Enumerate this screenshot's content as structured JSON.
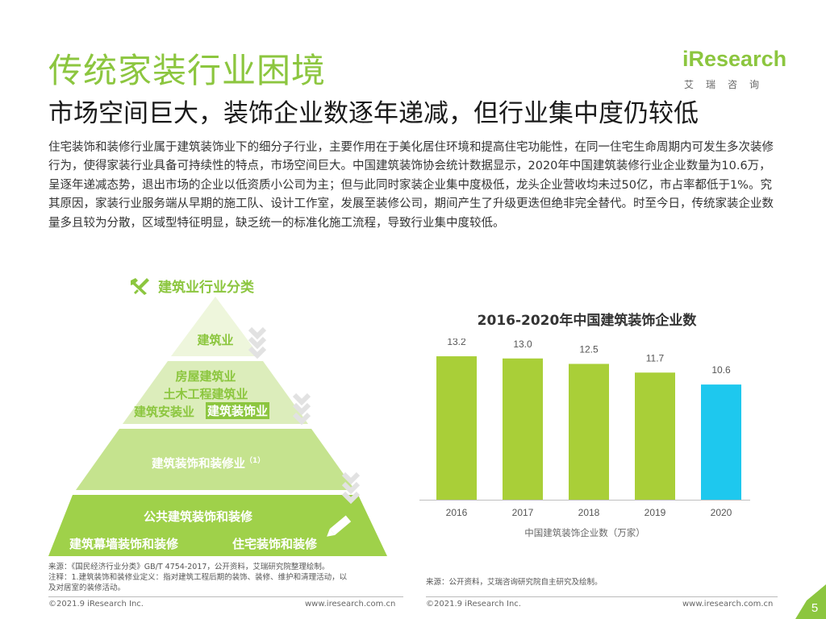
{
  "header": {
    "title": "传统家装行业困境",
    "subtitle": "市场空间巨大，装饰企业数逐年递减，但行业集中度仍较低"
  },
  "logo": {
    "name": "iResearch",
    "subtitle": "艾瑞咨询"
  },
  "paragraph": "住宅装饰和装修行业属于建筑装饰业下的细分子行业，主要作用在于美化居住环境和提高住宅功能性，在同一住宅生命周期内可发生多次装修行为，使得家装行业具备可持续性的特点，市场空间巨大。中国建筑装饰协会统计数据显示，2020年中国建筑装修行业企业数量为10.6万，呈逐年递减态势，退出市场的企业以低资质小公司为主；但与此同时家装企业集中度极低，龙头企业营收均未过50亿，市占率都低于1%。究其原因，家装行业服务端从早期的施工队、设计工作室，发展至装修公司，期间产生了升级更迭但绝非完全替代。时至今日，传统家装企业数量多且较为分散，区域型特征明显，缺乏统一的标准化施工流程，导致行业集中度较低。",
  "pyramid": {
    "title": "建筑业行业分类",
    "level1": "建筑业",
    "level2": [
      "房屋建筑业",
      "土木工程建筑业",
      "建筑安装业",
      "建筑装饰业"
    ],
    "level3": "建筑装饰和装修业",
    "level3_note": "（1）",
    "level4": [
      "公共建筑装饰和装修",
      "建筑幕墙装饰和装修",
      "住宅装饰和装修"
    ],
    "colors": {
      "level1": "#eef6dc",
      "level2": "#dcedbb",
      "level3": "#c5e38e",
      "level4": "#9fd14a",
      "chevron": "#e2e2e2"
    }
  },
  "chart_data": {
    "type": "bar",
    "title": "2016-2020年中国建筑装饰企业数",
    "categories": [
      "2016",
      "2017",
      "2018",
      "2019",
      "2020"
    ],
    "values": [
      13.2,
      13.0,
      12.5,
      11.7,
      10.6
    ],
    "value_labels": [
      "13.2",
      "13.0",
      "12.5",
      "11.7",
      "10.6"
    ],
    "xlabel": "中国建筑装饰企业数（万家）",
    "ylabel": "",
    "ylim": [
      0,
      13.5
    ],
    "grid": false,
    "colors": [
      "#a9cf38",
      "#a9cf38",
      "#a9cf38",
      "#a9cf38",
      "#1ec8ee"
    ]
  },
  "sources": {
    "left_line1": "来源：《国民经济行业分类》GB/T 4754-2017，公开资料，艾瑞研究院整理绘制。",
    "left_line2": "注释：1.建筑装饰和装修业定义：指对建筑工程后期的装饰、装修、维护和清理活动，以",
    "left_line3": "及对居室的装修活动。",
    "right": "来源：公开资料，艾瑞咨询研究院自主研究及绘制。"
  },
  "footer": {
    "copyright": "©2021.9 iResearch Inc.",
    "website": "www.iresearch.com.cn",
    "page_number": "5"
  },
  "colors": {
    "brand_green": "#8cc63f",
    "highlight_blue": "#1ec8ee"
  }
}
